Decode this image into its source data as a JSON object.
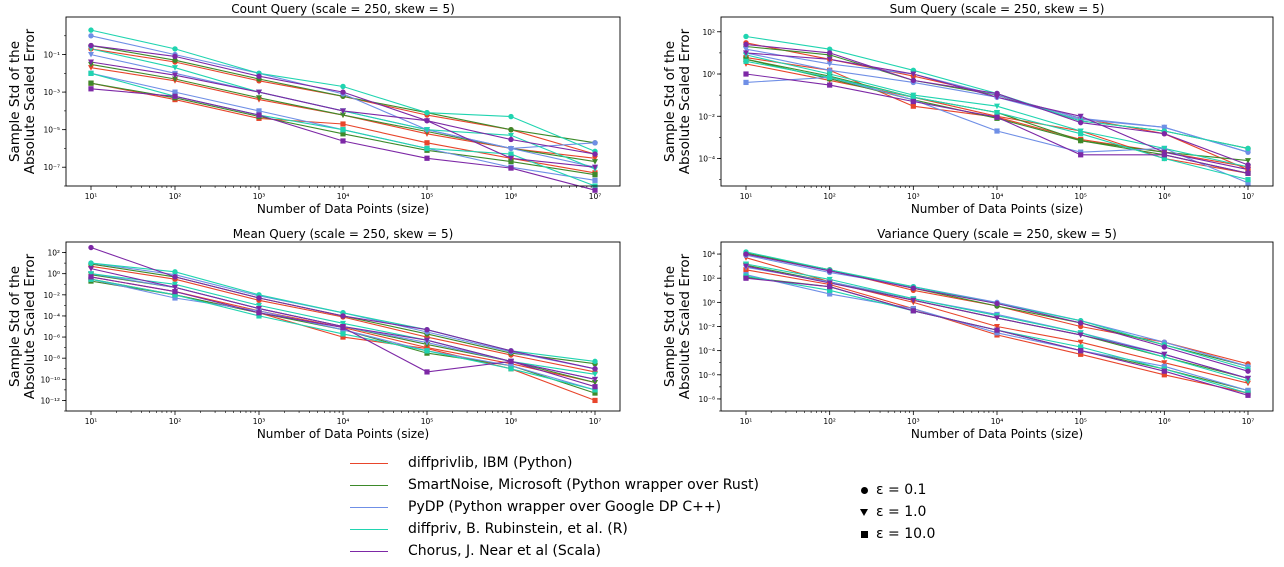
{
  "colors": {
    "diffprivlib": "#e8452b",
    "smartnoise": "#3d8a2a",
    "pydp": "#6f8fe6",
    "diffpriv": "#20d4b0",
    "chorus": "#7d28a6"
  },
  "legend": {
    "libraries": [
      {
        "key": "diffprivlib",
        "label": "diffprivlib, IBM (Python)"
      },
      {
        "key": "smartnoise",
        "label": "SmartNoise, Microsoft (Python wrapper over Rust)"
      },
      {
        "key": "pydp",
        "label": "PyDP (Python wrapper over Google DP C++)"
      },
      {
        "key": "diffpriv",
        "label": "diffpriv, B. Rubinstein, et al. (R)"
      },
      {
        "key": "chorus",
        "label": "Chorus, J. Near et al (Scala)"
      }
    ],
    "markers": [
      {
        "marker": "circle",
        "label": "ε = 0.1"
      },
      {
        "marker": "triangle",
        "label": "ε = 1.0"
      },
      {
        "marker": "square",
        "label": "ε = 10.0"
      }
    ]
  },
  "chart_data": [
    {
      "type": "line",
      "title": "Count Query (scale = 250, skew = 5)",
      "xlabel": "Number of Data Points (size)",
      "ylabel": "Sample Std of the Absolute Scaled Error",
      "xscale": "log",
      "yscale": "log",
      "xlim": [
        10,
        10000000
      ],
      "ylim": [
        1e-08,
        10
      ],
      "xticks": [
        10,
        100,
        1000,
        10000,
        100000,
        1000000,
        10000000
      ],
      "yticks": [
        1e-07,
        1e-05,
        0.001,
        0.1
      ],
      "x": [
        10,
        100,
        1000,
        10000,
        100000,
        1000000,
        10000000
      ],
      "series": [
        {
          "lib": "diffprivlib",
          "marker": "circle",
          "values": [
            0.2,
            0.04,
            0.004,
            0.0006,
            6e-05,
            1e-05,
            5e-07
          ]
        },
        {
          "lib": "diffprivlib",
          "marker": "triangle",
          "values": [
            0.02,
            0.004,
            0.0004,
            6e-05,
            6e-06,
            1e-06,
            3e-07
          ]
        },
        {
          "lib": "diffprivlib",
          "marker": "square",
          "values": [
            0.003,
            0.0004,
            4e-05,
            2e-05,
            2e-06,
            3e-07,
            5e-08
          ]
        },
        {
          "lib": "smartnoise",
          "marker": "circle",
          "values": [
            0.3,
            0.05,
            0.005,
            0.0006,
            8e-05,
            1e-05,
            2e-06
          ]
        },
        {
          "lib": "smartnoise",
          "marker": "triangle",
          "values": [
            0.03,
            0.005,
            0.0005,
            6e-05,
            8e-06,
            1e-06,
            2e-07
          ]
        },
        {
          "lib": "smartnoise",
          "marker": "square",
          "values": [
            0.003,
            0.0005,
            5e-05,
            6e-06,
            8e-07,
            2e-07,
            4e-08
          ]
        },
        {
          "lib": "pydp",
          "marker": "circle",
          "values": [
            1,
            0.1,
            0.01,
            0.0008,
            1e-05,
            1e-06,
            2e-06
          ]
        },
        {
          "lib": "pydp",
          "marker": "triangle",
          "values": [
            0.1,
            0.01,
            0.001,
            0.0001,
            1e-05,
            1e-06,
            1e-07
          ]
        },
        {
          "lib": "pydp",
          "marker": "square",
          "values": [
            0.01,
            0.001,
            0.0001,
            1e-05,
            1e-06,
            1e-07,
            2e-08
          ]
        },
        {
          "lib": "diffpriv",
          "marker": "circle",
          "values": [
            2,
            0.2,
            0.01,
            0.002,
            8e-05,
            5e-05,
            7e-07
          ]
        },
        {
          "lib": "diffpriv",
          "marker": "triangle",
          "values": [
            0.2,
            0.02,
            0.001,
            0.0001,
            1e-05,
            5e-06,
            8e-08
          ]
        },
        {
          "lib": "diffpriv",
          "marker": "square",
          "values": [
            0.01,
            0.0006,
            6e-05,
            1e-05,
            1e-06,
            5e-07,
            1e-08
          ]
        },
        {
          "lib": "chorus",
          "marker": "circle",
          "values": [
            0.3,
            0.08,
            0.007,
            0.001,
            3e-05,
            3e-06,
            5e-07
          ]
        },
        {
          "lib": "chorus",
          "marker": "triangle",
          "values": [
            0.04,
            0.008,
            0.001,
            0.0001,
            3e-05,
            3e-07,
            1e-07
          ]
        },
        {
          "lib": "chorus",
          "marker": "square",
          "values": [
            0.0015,
            0.0006,
            6e-05,
            2.5e-06,
            3e-07,
            9e-08,
            6e-09
          ]
        }
      ]
    },
    {
      "type": "line",
      "title": "Sum Query (scale = 250, skew = 5)",
      "xlabel": "Number of Data Points (size)",
      "ylabel": "Sample Std of the Absolute Scaled Error",
      "xscale": "log",
      "yscale": "log",
      "xlim": [
        10,
        10000000
      ],
      "ylim": [
        5e-06,
        500
      ],
      "xticks": [
        10,
        100,
        1000,
        10000,
        100000,
        1000000,
        10000000
      ],
      "yticks": [
        0.0001,
        0.01,
        1,
        100
      ],
      "x": [
        10,
        100,
        1000,
        10000,
        100000,
        1000000,
        10000000
      ],
      "series": [
        {
          "lib": "diffprivlib",
          "marker": "circle",
          "values": [
            30,
            5,
            0.8,
            0.1,
            0.008,
            0.0015,
            3e-05
          ]
        },
        {
          "lib": "diffprivlib",
          "marker": "triangle",
          "values": [
            3,
            0.5,
            0.08,
            0.01,
            0.002,
            0.0001,
            2e-05
          ]
        },
        {
          "lib": "diffprivlib",
          "marker": "square",
          "values": [
            6,
            1.5,
            0.03,
            0.009,
            0.0008,
            0.0002,
            4e-05
          ]
        },
        {
          "lib": "smartnoise",
          "marker": "circle",
          "values": [
            20,
            8,
            0.5,
            0.1,
            0.006,
            0.002,
            0.0003
          ]
        },
        {
          "lib": "smartnoise",
          "marker": "triangle",
          "values": [
            5,
            0.8,
            0.08,
            0.015,
            0.0007,
            0.0002,
            8e-05
          ]
        },
        {
          "lib": "smartnoise",
          "marker": "square",
          "values": [
            5,
            0.6,
            0.06,
            0.008,
            0.0007,
            0.00015,
            2e-05
          ]
        },
        {
          "lib": "pydp",
          "marker": "circle",
          "values": [
            10,
            1.5,
            0.4,
            0.08,
            0.007,
            0.003,
            0.0002
          ]
        },
        {
          "lib": "pydp",
          "marker": "triangle",
          "values": [
            15,
            3,
            1,
            0.1,
            0.008,
            0.003,
            0.0002
          ]
        },
        {
          "lib": "pydp",
          "marker": "square",
          "values": [
            0.4,
            0.7,
            0.06,
            0.002,
            0.0002,
            0.0003,
            7e-06
          ]
        },
        {
          "lib": "diffpriv",
          "marker": "circle",
          "values": [
            60,
            15,
            1.5,
            0.12,
            0.006,
            0.002,
            0.0003
          ]
        },
        {
          "lib": "diffpriv",
          "marker": "triangle",
          "values": [
            8,
            1,
            0.1,
            0.03,
            0.002,
            0.0003,
            4e-05
          ]
        },
        {
          "lib": "diffpriv",
          "marker": "square",
          "values": [
            4,
            0.7,
            0.08,
            0.015,
            0.0015,
            0.0001,
            1e-05
          ]
        },
        {
          "lib": "chorus",
          "marker": "circle",
          "values": [
            25,
            10,
            0.5,
            0.12,
            0.005,
            0.0015,
            5e-05
          ]
        },
        {
          "lib": "chorus",
          "marker": "triangle",
          "values": [
            10,
            5,
            1,
            0.08,
            0.01,
            0.0002,
            3e-05
          ]
        },
        {
          "lib": "chorus",
          "marker": "square",
          "values": [
            1,
            0.3,
            0.05,
            0.009,
            0.00015,
            0.00015,
            2e-05
          ]
        }
      ]
    },
    {
      "type": "line",
      "title": "Mean Query (scale = 250, skew = 5)",
      "xlabel": "Number of Data Points (size)",
      "ylabel": "Sample Std of the Absolute Scaled Error",
      "xscale": "log",
      "yscale": "log",
      "xlim": [
        10,
        10000000
      ],
      "ylim": [
        1e-13,
        1000
      ],
      "xticks": [
        10,
        100,
        1000,
        10000,
        100000,
        1000000,
        10000000
      ],
      "yticks": [
        1e-12,
        1e-10,
        1e-08,
        1e-06,
        0.0001,
        0.01,
        1,
        100
      ],
      "x": [
        10,
        100,
        1000,
        10000,
        100000,
        1000000,
        10000000
      ],
      "series": [
        {
          "lib": "diffprivlib",
          "marker": "circle",
          "values": [
            5,
            0.3,
            0.003,
            8e-05,
            1e-06,
            2e-08,
            5e-10
          ]
        },
        {
          "lib": "diffprivlib",
          "marker": "triangle",
          "values": [
            0.5,
            0.02,
            0.0003,
            8e-06,
            1e-07,
            3e-09,
            5e-11
          ]
        },
        {
          "lib": "diffprivlib",
          "marker": "square",
          "values": [
            0.3,
            0.01,
            0.0002,
            1e-06,
            8e-08,
            1e-09,
            1e-12
          ]
        },
        {
          "lib": "smartnoise",
          "marker": "circle",
          "values": [
            8,
            0.5,
            0.005,
            0.0001,
            2e-06,
            3e-08,
            3e-09
          ]
        },
        {
          "lib": "smartnoise",
          "marker": "triangle",
          "values": [
            0.8,
            0.05,
            0.0005,
            1e-05,
            2e-07,
            5e-09,
            5e-11
          ]
        },
        {
          "lib": "smartnoise",
          "marker": "square",
          "values": [
            0.2,
            0.01,
            0.0002,
            5e-06,
            3e-08,
            2e-09,
            5e-12
          ]
        },
        {
          "lib": "pydp",
          "marker": "circle",
          "values": [
            10,
            0.8,
            0.008,
            0.0002,
            3e-06,
            4e-08,
            1e-09
          ]
        },
        {
          "lib": "pydp",
          "marker": "triangle",
          "values": [
            1,
            0.05,
            0.0005,
            1e-05,
            3e-07,
            5e-09,
            1e-10
          ]
        },
        {
          "lib": "pydp",
          "marker": "square",
          "values": [
            0.3,
            0.005,
            0.0003,
            5e-06,
            5e-08,
            2e-09,
            1e-11
          ]
        },
        {
          "lib": "diffpriv",
          "marker": "circle",
          "values": [
            10,
            1.5,
            0.01,
            0.0002,
            5e-06,
            5e-08,
            5e-09
          ]
        },
        {
          "lib": "diffpriv",
          "marker": "triangle",
          "values": [
            1,
            0.1,
            0.001,
            2e-05,
            5e-07,
            5e-09,
            3e-10
          ]
        },
        {
          "lib": "diffpriv",
          "marker": "square",
          "values": [
            0.3,
            0.01,
            0.0001,
            2e-06,
            5e-08,
            1e-09,
            1e-11
          ]
        },
        {
          "lib": "chorus",
          "marker": "circle",
          "values": [
            300,
            0.5,
            0.005,
            0.0001,
            5e-06,
            5e-08,
            1e-09
          ]
        },
        {
          "lib": "chorus",
          "marker": "triangle",
          "values": [
            3,
            0.05,
            0.0005,
            1e-05,
            5e-07,
            5e-09,
            1e-10
          ]
        },
        {
          "lib": "chorus",
          "marker": "square",
          "values": [
            0.5,
            0.02,
            0.0002,
            8e-06,
            5e-10,
            5e-09,
            2e-11
          ]
        }
      ]
    },
    {
      "type": "line",
      "title": "Variance Query (scale = 250, skew = 5)",
      "xlabel": "Number of Data Points (size)",
      "ylabel": "Sample Std of the Absolute Scaled Error",
      "xscale": "log",
      "yscale": "log",
      "xlim": [
        10,
        10000000
      ],
      "ylim": [
        1e-09,
        100000
      ],
      "xticks": [
        10,
        100,
        1000,
        10000,
        100000,
        1000000,
        10000000
      ],
      "yticks": [
        1e-08,
        1e-06,
        0.0001,
        0.01,
        1,
        100,
        10000
      ],
      "x": [
        10,
        100,
        1000,
        10000,
        100000,
        1000000,
        10000000
      ],
      "series": [
        {
          "lib": "diffprivlib",
          "marker": "circle",
          "values": [
            10000,
            500,
            10,
            0.5,
            0.01,
            0.0005,
            8e-06
          ]
        },
        {
          "lib": "diffprivlib",
          "marker": "triangle",
          "values": [
            5000,
            50,
            1,
            0.01,
            0.0005,
            1e-05,
            2e-07
          ]
        },
        {
          "lib": "diffprivlib",
          "marker": "square",
          "values": [
            500,
            30,
            0.3,
            0.002,
            5e-05,
            1e-06,
            3e-08
          ]
        },
        {
          "lib": "smartnoise",
          "marker": "circle",
          "values": [
            12000,
            500,
            15,
            0.5,
            0.02,
            0.0003,
            5e-06
          ]
        },
        {
          "lib": "smartnoise",
          "marker": "triangle",
          "values": [
            1200,
            50,
            1.5,
            0.05,
            0.002,
            3e-05,
            5e-07
          ]
        },
        {
          "lib": "smartnoise",
          "marker": "square",
          "values": [
            120,
            20,
            0.2,
            0.005,
            0.0001,
            3e-06,
            5e-08
          ]
        },
        {
          "lib": "pydp",
          "marker": "circle",
          "values": [
            8000,
            300,
            20,
            1,
            0.03,
            0.0005,
            5e-06
          ]
        },
        {
          "lib": "pydp",
          "marker": "triangle",
          "values": [
            800,
            50,
            2,
            0.1,
            0.003,
            5e-05,
            5e-07
          ]
        },
        {
          "lib": "pydp",
          "marker": "square",
          "values": [
            200,
            5,
            0.3,
            0.003,
            0.0001,
            5e-06,
            5e-08
          ]
        },
        {
          "lib": "diffpriv",
          "marker": "circle",
          "values": [
            15000,
            500,
            20,
            0.8,
            0.03,
            0.0003,
            3e-06
          ]
        },
        {
          "lib": "diffpriv",
          "marker": "triangle",
          "values": [
            1500,
            80,
            2,
            0.08,
            0.003,
            3e-05,
            3e-07
          ]
        },
        {
          "lib": "diffpriv",
          "marker": "square",
          "values": [
            150,
            10,
            0.2,
            0.005,
            0.0002,
            3e-06,
            3e-08
          ]
        },
        {
          "lib": "chorus",
          "marker": "circle",
          "values": [
            10000,
            400,
            15,
            0.8,
            0.02,
            0.0002,
            2e-06
          ]
        },
        {
          "lib": "chorus",
          "marker": "triangle",
          "values": [
            1000,
            40,
            1.5,
            0.05,
            0.002,
            5e-05,
            5e-07
          ]
        },
        {
          "lib": "chorus",
          "marker": "square",
          "values": [
            100,
            20,
            0.2,
            0.005,
            0.0001,
            2e-06,
            2e-08
          ]
        }
      ]
    }
  ]
}
